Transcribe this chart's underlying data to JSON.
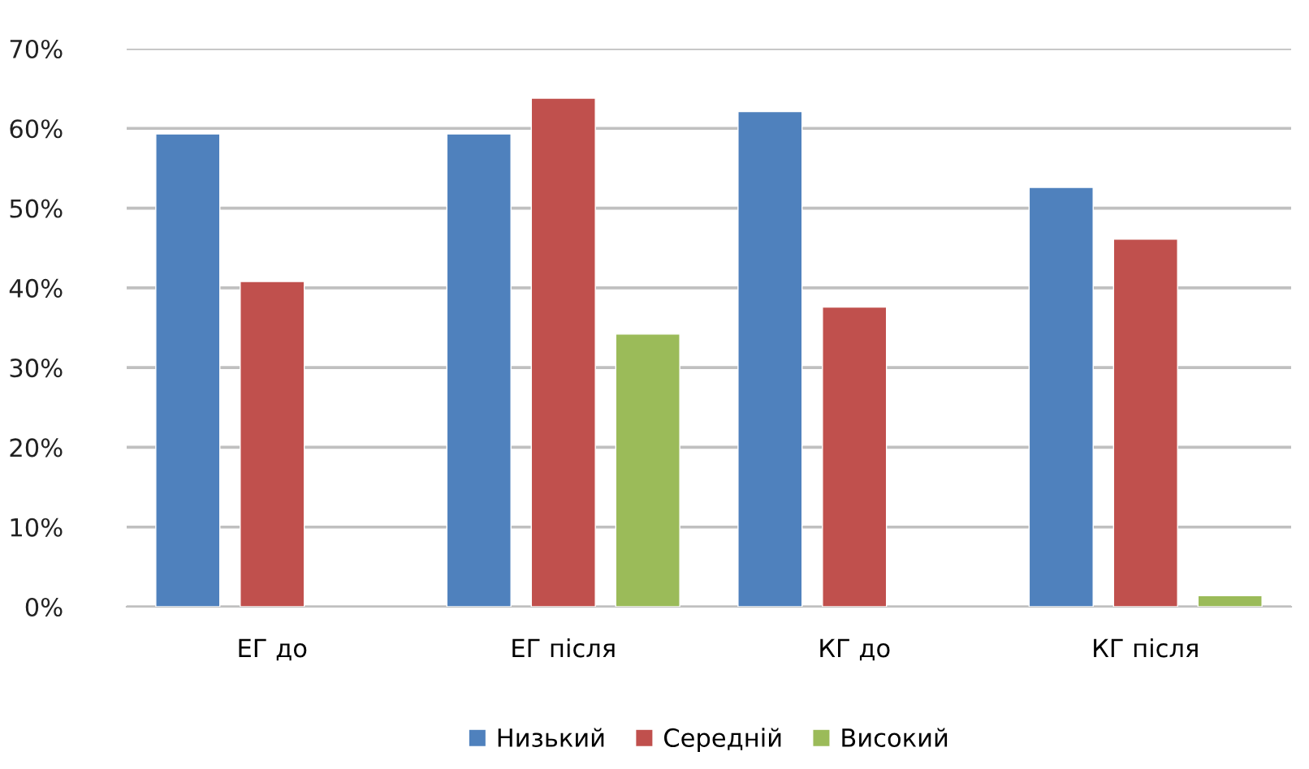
{
  "chart_data": {
    "type": "bar",
    "categories": [
      "ЕГ до",
      "ЕГ після",
      "КГ до",
      "КГ після"
    ],
    "series": [
      {
        "name": "Низький",
        "color": "#4f81bd",
        "values": [
          59.3,
          59.3,
          62.1,
          52.6
        ]
      },
      {
        "name": "Середній",
        "color": "#c0504d",
        "values": [
          40.8,
          63.8,
          37.6,
          46.1
        ]
      },
      {
        "name": "Високий",
        "color": "#9bbb59",
        "values": [
          null,
          34.2,
          null,
          1.4
        ]
      }
    ],
    "ylim": [
      0,
      70
    ],
    "yticks": [
      {
        "value": 0,
        "label": "0%"
      },
      {
        "value": 10,
        "label": "10%"
      },
      {
        "value": 20,
        "label": "20%"
      },
      {
        "value": 30,
        "label": "30%"
      },
      {
        "value": 40,
        "label": "40%"
      },
      {
        "value": 50,
        "label": "50%"
      },
      {
        "value": 60,
        "label": "60%"
      },
      {
        "value": 70,
        "label": "70%"
      }
    ],
    "grid": "y",
    "legend": "bottom"
  }
}
